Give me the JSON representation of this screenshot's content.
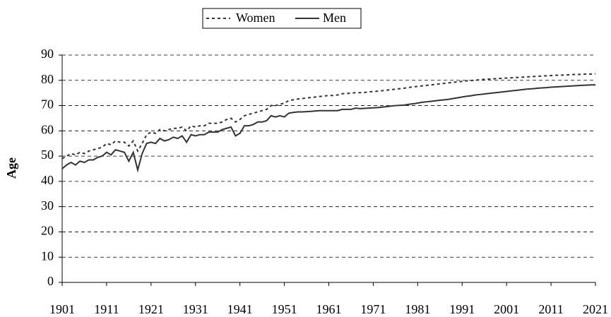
{
  "chart_data": {
    "type": "line",
    "ylabel": "Age",
    "legend": "top",
    "grid": true,
    "xlim": [
      1901,
      2021
    ],
    "xticks": [
      1901,
      1911,
      1921,
      1931,
      1941,
      1951,
      1961,
      1971,
      1981,
      1991,
      2001,
      2011,
      2021
    ],
    "ylim": [
      0,
      90
    ],
    "yticks": [
      0,
      10,
      20,
      30,
      40,
      50,
      60,
      70,
      80,
      90
    ],
    "x": [
      1901,
      1902,
      1903,
      1904,
      1905,
      1906,
      1907,
      1908,
      1909,
      1910,
      1911,
      1912,
      1913,
      1914,
      1915,
      1916,
      1917,
      1918,
      1919,
      1920,
      1921,
      1922,
      1923,
      1924,
      1925,
      1926,
      1927,
      1928,
      1929,
      1930,
      1931,
      1932,
      1933,
      1934,
      1935,
      1936,
      1937,
      1938,
      1939,
      1940,
      1941,
      1942,
      1943,
      1944,
      1945,
      1946,
      1947,
      1948,
      1949,
      1950,
      1951,
      1952,
      1953,
      1954,
      1955,
      1956,
      1957,
      1958,
      1959,
      1960,
      1961,
      1962,
      1963,
      1964,
      1965,
      1966,
      1967,
      1968,
      1969,
      1970,
      1971,
      1972,
      1973,
      1974,
      1975,
      1976,
      1977,
      1978,
      1979,
      1980,
      1981,
      1982,
      1983,
      1984,
      1985,
      1986,
      1987,
      1988,
      1989,
      1990,
      1991,
      1992,
      1993,
      1994,
      1995,
      1996,
      1997,
      1998,
      1999,
      2000,
      2001,
      2002,
      2003,
      2004,
      2005,
      2006,
      2007,
      2008,
      2009,
      2010,
      2011,
      2012,
      2013,
      2014,
      2015,
      2016,
      2017,
      2018,
      2019,
      2020,
      2021
    ],
    "series": [
      {
        "name": "Women",
        "color": "#333333",
        "dashed": true,
        "values": [
          49,
          50,
          51,
          50.5,
          51.5,
          51,
          52,
          52.5,
          53,
          53.5,
          55,
          54.5,
          56,
          55.5,
          55.5,
          54,
          56,
          52,
          55,
          58.5,
          59.5,
          59,
          60.5,
          60,
          60.5,
          61,
          61,
          61.5,
          60,
          62,
          61.5,
          62,
          62,
          63,
          63,
          63,
          63.5,
          64.5,
          65,
          63.5,
          64.5,
          66,
          66.5,
          67,
          67.5,
          68,
          68.5,
          70,
          70,
          70.5,
          71,
          72,
          72.3,
          72.6,
          72.8,
          73,
          73.2,
          73.4,
          73.6,
          73.8,
          74,
          74,
          74.2,
          74.7,
          74.8,
          74.9,
          75.1,
          75.1,
          75.2,
          75.4,
          75.6,
          75.7,
          75.9,
          76.1,
          76.3,
          76.5,
          76.7,
          76.9,
          77.2,
          77.4,
          77.6,
          77.8,
          78,
          78.2,
          78.4,
          78.6,
          78.8,
          79,
          79.2,
          79.4,
          79.6,
          79.8,
          79.9,
          80.1,
          80.2,
          80.4,
          80.5,
          80.6,
          80.7,
          80.8,
          80.9,
          81,
          81.1,
          81.2,
          81.3,
          81.4,
          81.5,
          81.6,
          81.7,
          81.8,
          81.9,
          82,
          82,
          82.1,
          82.2,
          82.3,
          82.3,
          82.4,
          82.5,
          82.5,
          82.6
        ]
      },
      {
        "name": "Men",
        "color": "#333333",
        "dashed": false,
        "values": [
          45,
          46.5,
          47.5,
          46.5,
          48,
          47.5,
          48.5,
          48.5,
          49.5,
          50,
          51.5,
          50.5,
          52.5,
          52,
          51.5,
          48,
          51.5,
          44.5,
          51,
          55,
          55.5,
          55,
          57,
          56,
          56.5,
          57.5,
          57,
          58,
          55.5,
          58.5,
          58,
          58.5,
          58.5,
          59.5,
          59.5,
          59.5,
          60.5,
          61,
          61.5,
          58,
          59,
          62,
          62,
          62.5,
          63.5,
          63.5,
          64,
          66,
          65.5,
          66,
          65.5,
          67,
          67.3,
          67.5,
          67.5,
          67.6,
          67.7,
          67.9,
          68,
          68,
          68,
          68,
          68,
          68.5,
          68.5,
          68.5,
          69,
          68.8,
          68.9,
          69,
          69.1,
          69.2,
          69.4,
          69.6,
          69.8,
          70,
          70.1,
          70.2,
          70.5,
          70.7,
          71,
          71.3,
          71.5,
          71.7,
          71.9,
          72.1,
          72.3,
          72.5,
          72.8,
          73.1,
          73.4,
          73.7,
          73.9,
          74.2,
          74.4,
          74.6,
          74.8,
          75,
          75.2,
          75.4,
          75.6,
          75.8,
          76,
          76.2,
          76.4,
          76.6,
          76.7,
          76.9,
          77,
          77.1,
          77.3,
          77.4,
          77.5,
          77.6,
          77.7,
          77.8,
          77.9,
          78,
          78.1,
          78.2,
          78.2
        ]
      }
    ]
  }
}
